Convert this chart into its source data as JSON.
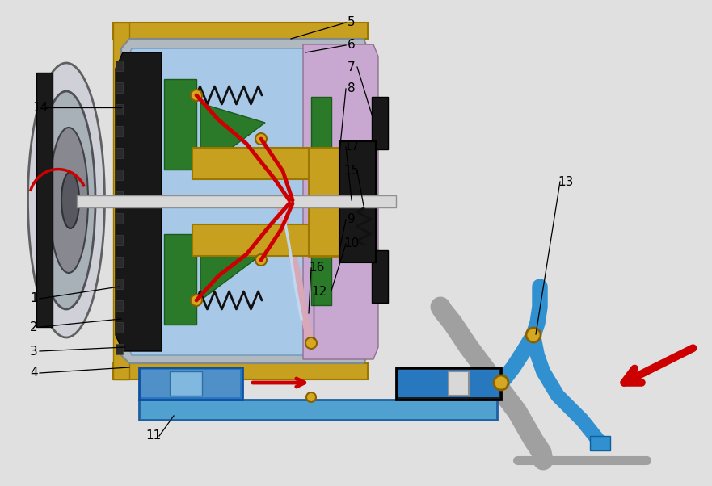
{
  "bg_color": "#e0e0e0",
  "gold": "#c8a020",
  "gold_dark": "#9b7700",
  "black": "#111111",
  "gray_light": "#b8bfc8",
  "blue_light": "#a8c8e8",
  "green_dark": "#2a7a2a",
  "pink": "#c8a0c8",
  "blue_cyl": "#2878c0",
  "blue_arm": "#3090d0",
  "gray_pedal": "#909090",
  "red": "#cc0000",
  "white_shaft": "#d8d8d8"
}
